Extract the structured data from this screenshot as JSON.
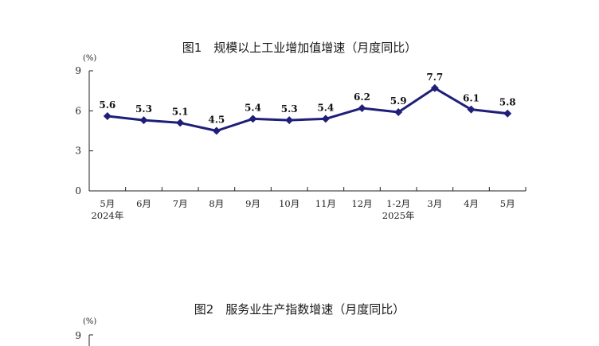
{
  "chart_data": [
    {
      "type": "line",
      "title": "图1　规模以上工业增加值增速（月度同比）",
      "unit_label": "(%)",
      "ylim": [
        0,
        9
      ],
      "yticks": [
        0,
        3,
        6,
        9
      ],
      "categories": [
        "5月",
        "6月",
        "7月",
        "8月",
        "9月",
        "10月",
        "11月",
        "12月",
        "1-2月",
        "3月",
        "4月",
        "5月"
      ],
      "year_labels": [
        {
          "index": 0,
          "label": "2024年"
        },
        {
          "index": 8,
          "label": "2025年"
        }
      ],
      "series": [
        {
          "values": [
            5.6,
            5.3,
            5.1,
            4.5,
            5.4,
            5.3,
            5.4,
            6.2,
            5.9,
            7.7,
            6.1,
            5.8
          ]
        }
      ],
      "data_labels": [
        "5.6",
        "5.3",
        "5.1",
        "4.5",
        "5.4",
        "5.3",
        "5.4",
        "6.2",
        "5.9",
        "7.7",
        "6.1",
        "5.8"
      ],
      "line_color": "#1f1f7a",
      "grid": false
    },
    {
      "type": "line",
      "title": "图2　服务业生产指数增速（月度同比）",
      "unit_label": "(%)",
      "yticks_visible": [
        "9"
      ]
    }
  ]
}
